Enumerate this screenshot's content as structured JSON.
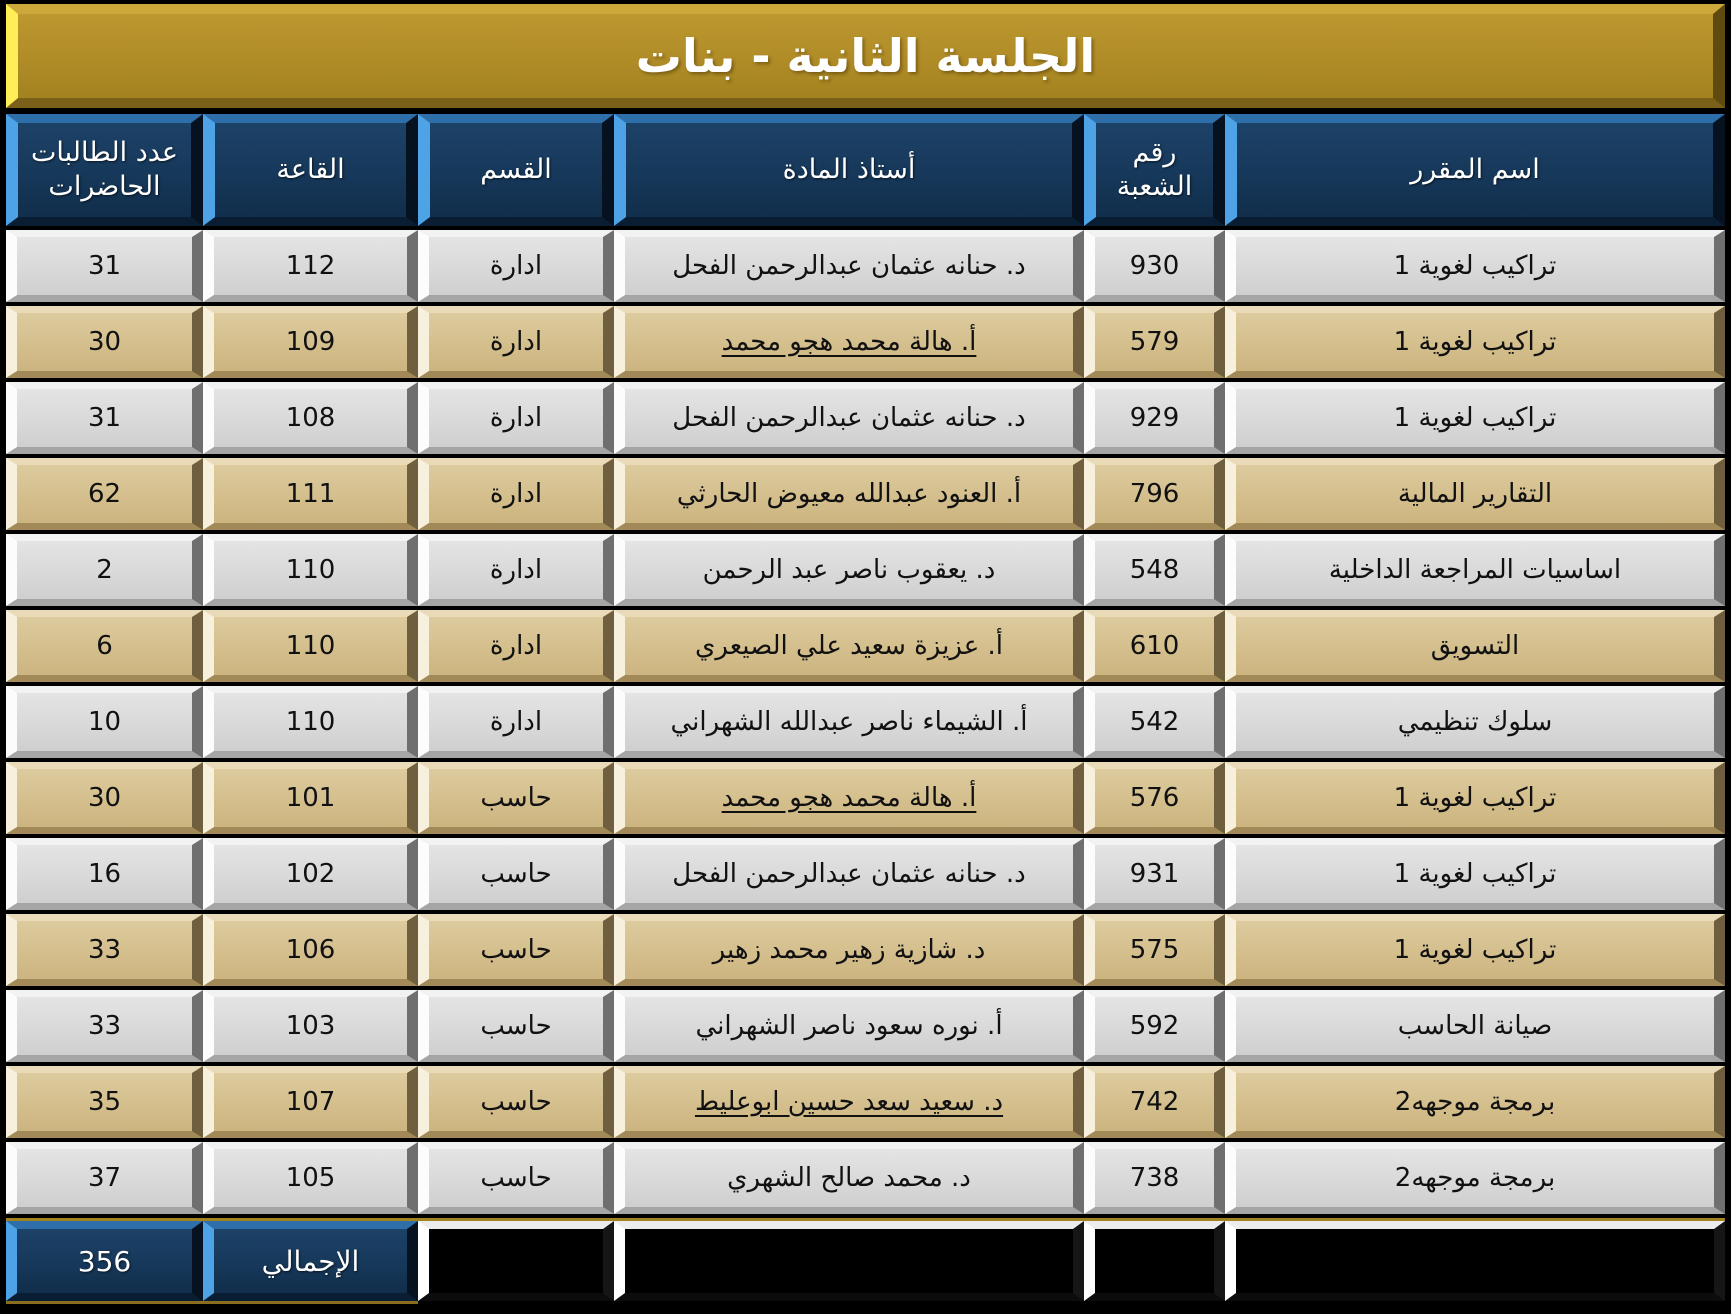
{
  "title": "الجلسة الثانية - بنات",
  "columns": {
    "course": "اسم المقرر",
    "section": "رقم الشعبة",
    "teacher": "أستاذ المادة",
    "dept": "القسم",
    "hall": "القاعة",
    "count": "عدد الطالبات الحاضرات"
  },
  "rows": [
    {
      "course": "تراكيب لغوية 1",
      "section": "930",
      "teacher": "د. حنانه عثمان عبدالرحمن الفحل",
      "dept": "ادارة",
      "hall": "112",
      "count": "31",
      "teacher_underline": false
    },
    {
      "course": "تراكيب لغوية 1",
      "section": "579",
      "teacher": "أ. هالة محمد هجو محمد",
      "dept": "ادارة",
      "hall": "109",
      "count": "30",
      "teacher_underline": true
    },
    {
      "course": "تراكيب لغوية 1",
      "section": "929",
      "teacher": "د. حنانه عثمان عبدالرحمن الفحل",
      "dept": "ادارة",
      "hall": "108",
      "count": "31",
      "teacher_underline": false
    },
    {
      "course": "التقارير المالية",
      "section": "796",
      "teacher": "أ. العنود عبدالله معيوض الحارثي",
      "dept": "ادارة",
      "hall": "111",
      "count": "62",
      "teacher_underline": false
    },
    {
      "course": "اساسيات المراجعة الداخلية",
      "section": "548",
      "teacher": "د. يعقوب ناصر عبد الرحمن",
      "dept": "ادارة",
      "hall": "110",
      "count": "2",
      "teacher_underline": false
    },
    {
      "course": "التسويق",
      "section": "610",
      "teacher": "أ. عزيزة سعيد علي الصيعري",
      "dept": "ادارة",
      "hall": "110",
      "count": "6",
      "teacher_underline": false
    },
    {
      "course": "سلوك تنظيمي",
      "section": "542",
      "teacher": "أ. الشيماء ناصر عبدالله الشهراني",
      "dept": "ادارة",
      "hall": "110",
      "count": "10",
      "teacher_underline": false
    },
    {
      "course": "تراكيب لغوية 1",
      "section": "576",
      "teacher": "أ. هالة محمد هجو محمد",
      "dept": "حاسب",
      "hall": "101",
      "count": "30",
      "teacher_underline": true
    },
    {
      "course": "تراكيب لغوية 1",
      "section": "931",
      "teacher": "د. حنانه عثمان عبدالرحمن الفحل",
      "dept": "حاسب",
      "hall": "102",
      "count": "16",
      "teacher_underline": false
    },
    {
      "course": "تراكيب لغوية 1",
      "section": "575",
      "teacher": "د. شازية زهير محمد زهير",
      "dept": "حاسب",
      "hall": "106",
      "count": "33",
      "teacher_underline": false
    },
    {
      "course": "صيانة الحاسب",
      "section": "592",
      "teacher": "أ. نوره سعود ناصر الشهراني",
      "dept": "حاسب",
      "hall": "103",
      "count": "33",
      "teacher_underline": false
    },
    {
      "course": "برمجة موجهه2",
      "section": "742",
      "teacher": "د. سعيد سعد حسين ابوعليط",
      "dept": "حاسب",
      "hall": "107",
      "count": "35",
      "teacher_underline": true
    },
    {
      "course": "برمجة موجهه2",
      "section": "738",
      "teacher": "د. محمد صالح الشهري",
      "dept": "حاسب",
      "hall": "105",
      "count": "37",
      "teacher_underline": false
    }
  ],
  "total": {
    "label": "الإجمالي",
    "value": "356"
  },
  "colors": {
    "title_gold": "#b08c27",
    "title_highlight": "#ffee55",
    "header_navy": "#16385a",
    "header_highlight": "#4ea2e6",
    "row_gray": "#d8d8d8",
    "row_tan": "#d3bd8b",
    "background": "#000000",
    "separator_gold": "#a3831f"
  }
}
